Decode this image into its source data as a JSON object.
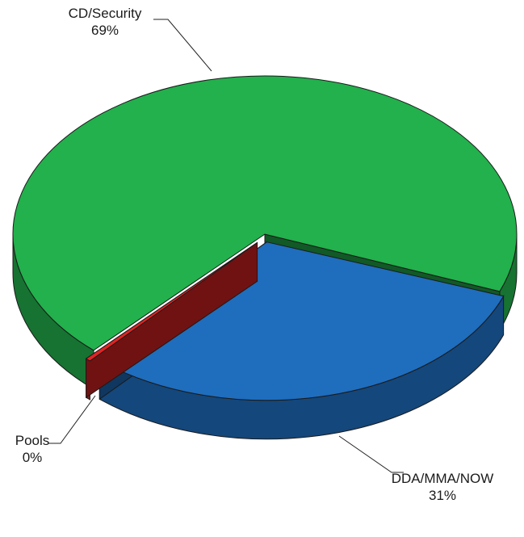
{
  "chart_data": {
    "type": "pie3d",
    "categories": [
      "DDA/MMA/NOW",
      "Pools",
      "CD/Security"
    ],
    "values": [
      31,
      0,
      69
    ],
    "value_labels": [
      "31%",
      "0%",
      "69%"
    ],
    "colors": [
      "#1f6dbd",
      "#e02424",
      "#22b14c"
    ]
  }
}
